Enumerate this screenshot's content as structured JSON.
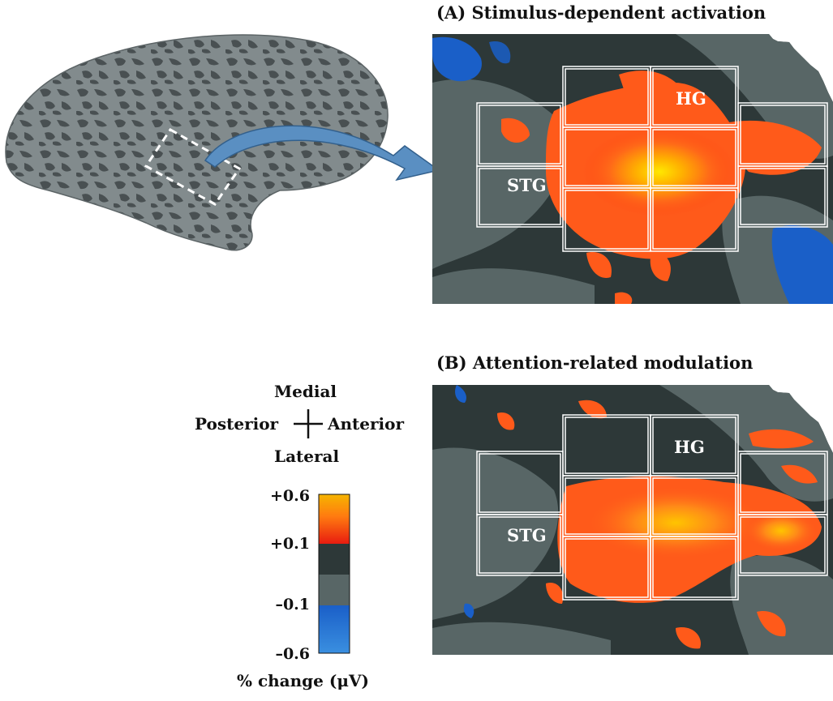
{
  "panel_a": {
    "title": "(A)  Stimulus-dependent activation",
    "labels": {
      "hg": "HG",
      "stg": "STG"
    }
  },
  "panel_b": {
    "title": "(B)  Attention-related modulation",
    "labels": {
      "hg": "HG",
      "stg": "STG"
    }
  },
  "orientation": {
    "medial": "Medial",
    "posterior": "Posterior",
    "anterior": "Anterior",
    "lateral": "Lateral"
  },
  "colorbar": {
    "ticks": [
      "+0.6",
      "+0.1",
      "–0.1",
      "–0.6"
    ],
    "caption": "% change (μV)",
    "colors": {
      "max": "#f6b500",
      "activation": "#ff5a1a",
      "threshold": "#e81c10",
      "dark_gray": "#2d3838",
      "light_gray": "#586666",
      "negative": "#1a5fc8",
      "min": "#3a8fe0"
    }
  },
  "colors": {
    "brain_light": "#7b8486",
    "brain_dark": "#3e4648",
    "arrow": "#5a8fc2"
  }
}
